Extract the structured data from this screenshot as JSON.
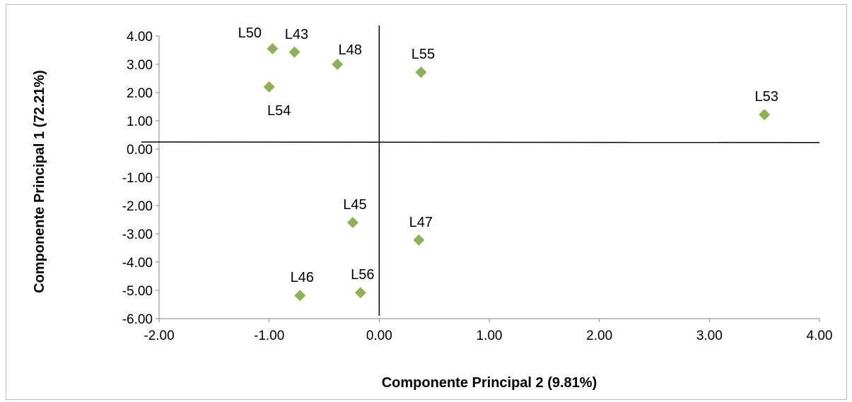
{
  "chart_data": {
    "type": "scatter",
    "title": "",
    "xlabel": "Componente Principal 2 (9.81%)",
    "ylabel": "Componente Principal 1 (72.21%)",
    "xlim": [
      -2.0,
      4.0
    ],
    "ylim": [
      -6.0,
      4.0
    ],
    "x_ticks": [
      "-2.00",
      "-1.00",
      "0.00",
      "1.00",
      "2.00",
      "3.00",
      "4.00"
    ],
    "y_ticks": [
      "4.00",
      "3.00",
      "2.00",
      "1.00",
      "0.00",
      "-1.00",
      "-2.00",
      "-3.00",
      "-4.00",
      "-5.00",
      "-6.00"
    ],
    "grid": false,
    "marker": "diamond",
    "marker_color": "#8db255",
    "quadrant_lines": {
      "vertical_x": 0.0,
      "horizontal_y_left": 0.25,
      "horizontal_y_right": 0.23
    },
    "points": [
      {
        "label": "L50",
        "x": -0.97,
        "y": 3.55,
        "label_pos": "above-left"
      },
      {
        "label": "L43",
        "x": -0.77,
        "y": 3.43,
        "label_pos": "above"
      },
      {
        "label": "L48",
        "x": -0.38,
        "y": 3.0,
        "label_pos": "above-right"
      },
      {
        "label": "L54",
        "x": -1.0,
        "y": 2.2,
        "label_pos": "below"
      },
      {
        "label": "L55",
        "x": 0.38,
        "y": 2.72,
        "label_pos": "above"
      },
      {
        "label": "L53",
        "x": 3.5,
        "y": 1.22,
        "label_pos": "above"
      },
      {
        "label": "L45",
        "x": -0.24,
        "y": -2.6,
        "label_pos": "above"
      },
      {
        "label": "L47",
        "x": 0.36,
        "y": -3.22,
        "label_pos": "above"
      },
      {
        "label": "L46",
        "x": -0.72,
        "y": -5.18,
        "label_pos": "above"
      },
      {
        "label": "L56",
        "x": -0.17,
        "y": -5.08,
        "label_pos": "above"
      }
    ]
  }
}
